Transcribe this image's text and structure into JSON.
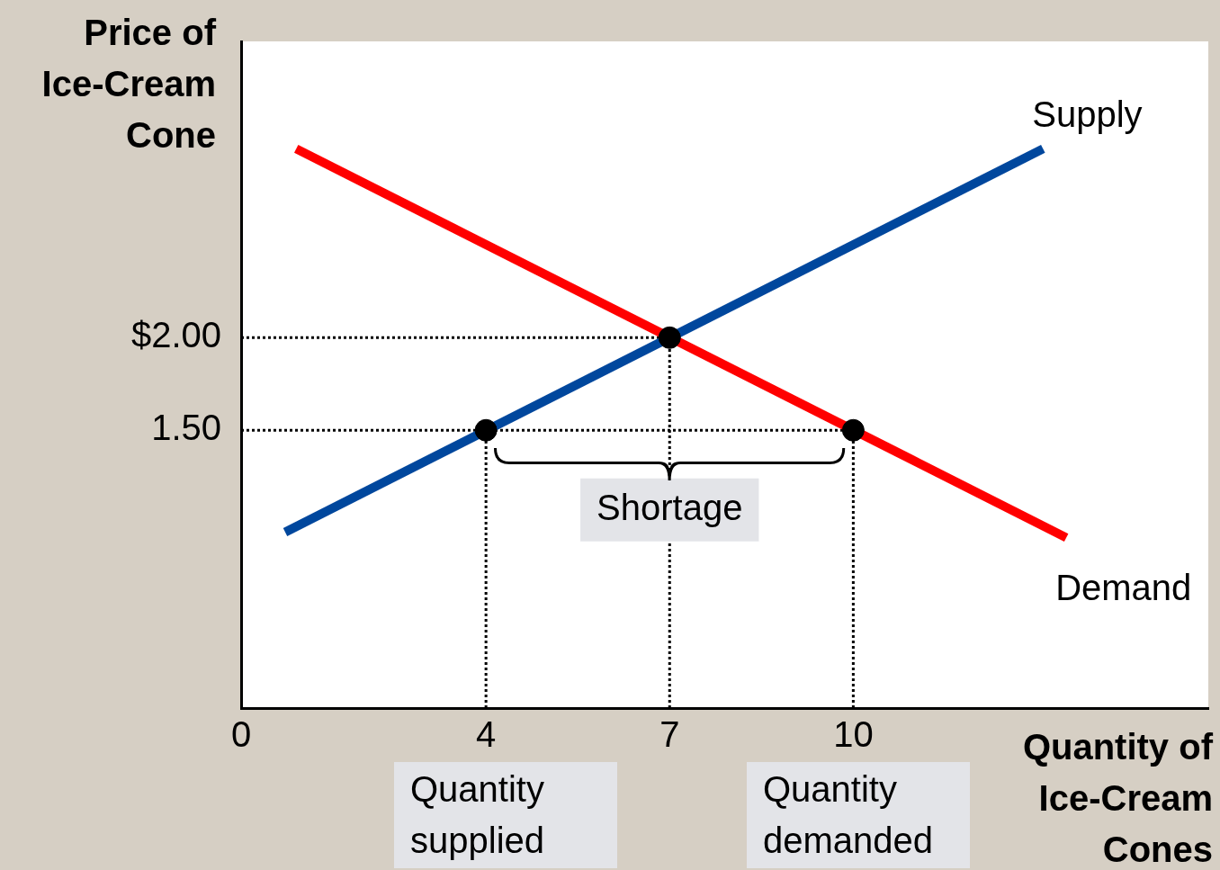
{
  "chart_data": {
    "type": "line",
    "xlabel": "Quantity of Ice-Cream Cones",
    "ylabel": "Price of Ice-Cream Cone",
    "xlim": [
      0,
      15.8
    ],
    "ylim": [
      0,
      3.6
    ],
    "xticks": [
      0,
      4,
      7,
      10
    ],
    "yticks": [
      {
        "value": 1.5,
        "label": "1.50"
      },
      {
        "value": 2,
        "label": "$2.00"
      }
    ],
    "series": [
      {
        "name": "Supply",
        "color": "#00479d",
        "x": [
          0.72,
          13.1
        ],
        "values": [
          0.95,
          3.02
        ]
      },
      {
        "name": "Demand",
        "color": "#ff0000",
        "x": [
          0.9,
          13.48
        ],
        "values": [
          3.02,
          0.92
        ]
      },
      {
        "color": "#000000",
        "x": [
          0,
          7
        ],
        "values": [
          2,
          2
        ],
        "line_style": "dotted"
      },
      {
        "color": "#000000",
        "x": [
          0,
          10
        ],
        "values": [
          1.5,
          1.5
        ],
        "line_style": "dotted"
      },
      {
        "color": "#000000",
        "x": [
          4,
          4
        ],
        "values": [
          0,
          1.5
        ],
        "line_style": "dotted"
      },
      {
        "color": "#000000",
        "x": [
          7,
          7
        ],
        "values": [
          0,
          2
        ],
        "line_style": "dotted"
      },
      {
        "color": "#000000",
        "x": [
          10,
          10
        ],
        "values": [
          0,
          1.5
        ],
        "line_style": "dotted"
      },
      {
        "type": "scatter",
        "color": "#000000",
        "x": [
          4,
          7,
          10
        ],
        "values": [
          1.5,
          2,
          1.5
        ],
        "marker": "circle"
      }
    ],
    "annotations": [
      {
        "text": "Shortage",
        "x": 7,
        "y": 1.07
      },
      "Quantity supplied",
      "Quantity demanded"
    ]
  }
}
